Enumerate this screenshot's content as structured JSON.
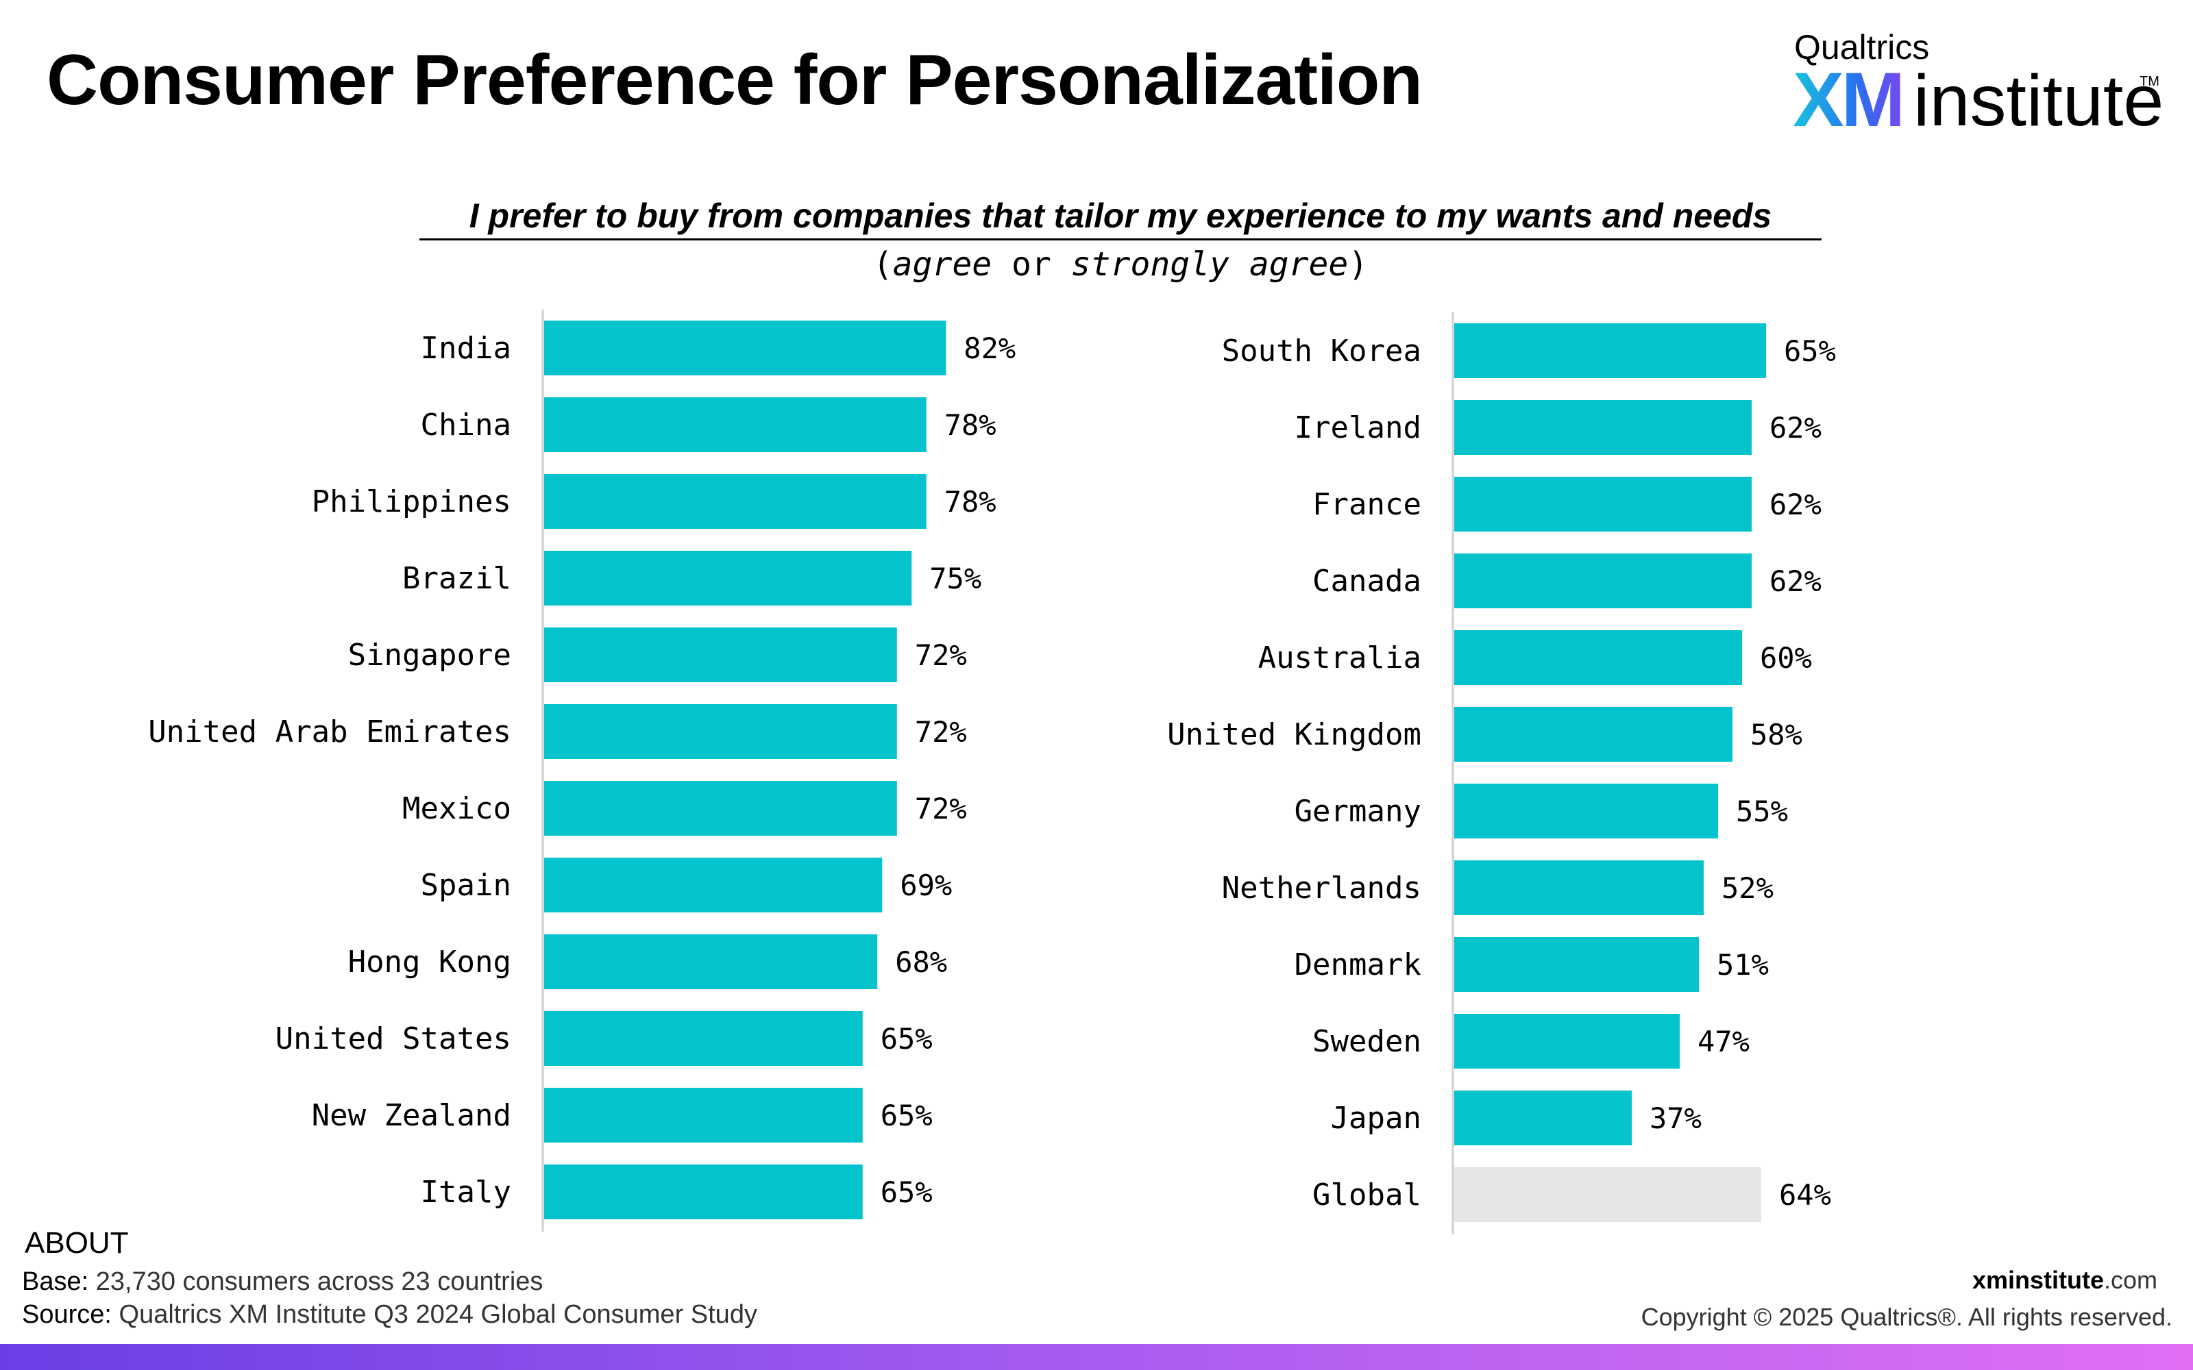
{
  "title": "Consumer Preference for Personalization",
  "logo": {
    "top": "Qualtrics",
    "xm": "XM",
    "institute": "institute",
    "tm": "TM"
  },
  "subtitle": "I prefer to buy from companies that tailor my experience to my wants and needs",
  "subtitle2": {
    "open": "(",
    "agree": "agree",
    "or": " or ",
    "strongly": "strongly agree",
    "close": ")"
  },
  "colors": {
    "bar": "#05c3cc",
    "global_bar": "#e6e6e6",
    "axis": "#cfcfcf"
  },
  "chart_data": [
    {
      "type": "bar",
      "orientation": "horizontal",
      "categories": [
        "India",
        "China",
        "Philippines",
        "Brazil",
        "Singapore",
        "United Arab Emirates",
        "Mexico",
        "Spain",
        "Hong Kong",
        "United States",
        "New Zealand",
        "Italy"
      ],
      "values": [
        82,
        78,
        78,
        75,
        72,
        72,
        72,
        69,
        68,
        65,
        65,
        65
      ],
      "labels": [
        "82%",
        "78%",
        "78%",
        "75%",
        "72%",
        "72%",
        "72%",
        "69%",
        "68%",
        "65%",
        "65%",
        "65%"
      ]
    },
    {
      "type": "bar",
      "orientation": "horizontal",
      "categories": [
        "South Korea",
        "Ireland",
        "France",
        "Canada",
        "Australia",
        "United Kingdom",
        "Germany",
        "Netherlands",
        "Denmark",
        "Sweden",
        "Japan",
        "Global"
      ],
      "values": [
        65,
        62,
        62,
        62,
        60,
        58,
        55,
        52,
        51,
        47,
        37,
        64
      ],
      "labels": [
        "65%",
        "62%",
        "62%",
        "62%",
        "60%",
        "58%",
        "55%",
        "52%",
        "51%",
        "47%",
        "37%",
        "64%"
      ],
      "highlight": "Global"
    }
  ],
  "footer": {
    "about": "ABOUT",
    "base_label": "Base:",
    "base_text": " 23,730 consumers across 23 countries",
    "source_label": "Source:",
    "source_text": " Qualtrics XM Institute Q3 2024 Global Consumer Study",
    "site_bold": "xminstitute",
    "site_rest": ".com",
    "copyright": "Copyright © 2025 Qualtrics®. All rights reserved."
  }
}
